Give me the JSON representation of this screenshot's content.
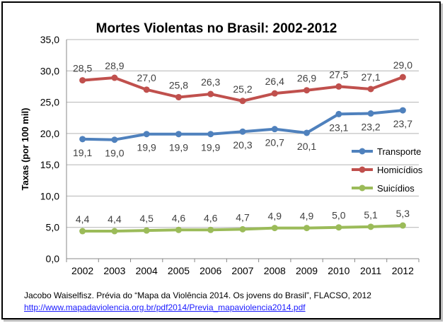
{
  "chart_data": {
    "type": "line",
    "title": "Mortes Violentas no Brasil: 2002-2012",
    "xlabel": "",
    "ylabel": "Taxas (por 100 mil)",
    "categories": [
      "2002",
      "2003",
      "2004",
      "2005",
      "2006",
      "2007",
      "2008",
      "2009",
      "2010",
      "2011",
      "2012"
    ],
    "ylim": [
      0,
      35
    ],
    "yticks": [
      "0,0",
      "5,0",
      "10,0",
      "15,0",
      "20,0",
      "25,0",
      "30,0",
      "35,0"
    ],
    "grid": true,
    "legend_position": "right",
    "series": [
      {
        "name": "Transporte",
        "color": "#4f81bd",
        "values": [
          19.1,
          19.0,
          19.9,
          19.9,
          19.9,
          20.3,
          20.7,
          20.1,
          23.1,
          23.2,
          23.7
        ],
        "labels": [
          "19,1",
          "19,0",
          "19,9",
          "19,9",
          "19,9",
          "20,3",
          "20,7",
          "20,1",
          "23,1",
          "23,2",
          "23,7"
        ],
        "label_position": "below"
      },
      {
        "name": "Homicídios",
        "color": "#c0504d",
        "values": [
          28.5,
          28.9,
          27.0,
          25.8,
          26.3,
          25.2,
          26.4,
          26.9,
          27.5,
          27.1,
          29.0
        ],
        "labels": [
          "28,5",
          "28,9",
          "27,0",
          "25,8",
          "26,3",
          "25,2",
          "26,4",
          "26,9",
          "27,5",
          "27,1",
          "29,0"
        ],
        "label_position": "above"
      },
      {
        "name": "Suicídios",
        "color": "#9bbb59",
        "values": [
          4.4,
          4.4,
          4.5,
          4.6,
          4.6,
          4.7,
          4.9,
          4.9,
          5.0,
          5.1,
          5.3
        ],
        "labels": [
          "4,4",
          "4,4",
          "4,5",
          "4,6",
          "4,6",
          "4,7",
          "4,9",
          "4,9",
          "5,0",
          "5,1",
          "5,3"
        ],
        "label_position": "above"
      }
    ]
  },
  "source": {
    "text": "Jacobo Waiselfisz. Prévia do “Mapa da Violência 2014. Os jovens do Brasil”, FLACSO, 2012",
    "link": "http://www.mapadaviolencia.org.br/pdf2014/Previa_mapaviolencia2014.pdf"
  }
}
